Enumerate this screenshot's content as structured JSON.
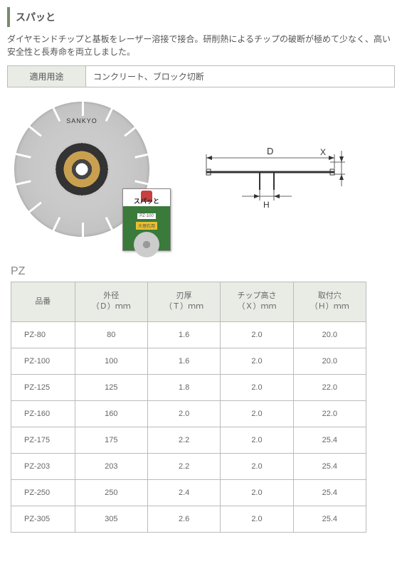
{
  "title": "スパッと",
  "description": "ダイヤモンドチップと基板をレーザー溶接で接合。研削熱によるチップの破断が極めて少なく、高い安全性と長寿命を両立しました。",
  "use_label": "適用用途",
  "use_value": "コンクリート、ブロック切断",
  "blade_brand": "SANKYO",
  "package": {
    "name": "スパッと",
    "code": "PZ-100",
    "tag": "大理石用"
  },
  "diagram_labels": {
    "D": "D",
    "X": "X",
    "H": "H"
  },
  "section": "PZ",
  "spec_headers": {
    "pn": "品番",
    "d": "外径\n（Ｄ）ｍｍ",
    "t": "刃厚\n（Ｔ）ｍｍ",
    "x": "チップ高さ\n（Ｘ）ｍｍ",
    "h": "取付穴\n（Ｈ）ｍｍ"
  },
  "spec_rows": [
    {
      "pn": "PZ-80",
      "d": "80",
      "t": "1.6",
      "x": "2.0",
      "h": "20.0"
    },
    {
      "pn": "PZ-100",
      "d": "100",
      "t": "1.6",
      "x": "2.0",
      "h": "20.0"
    },
    {
      "pn": "PZ-125",
      "d": "125",
      "t": "1.8",
      "x": "2.0",
      "h": "22.0"
    },
    {
      "pn": "PZ-160",
      "d": "160",
      "t": "2.0",
      "x": "2.0",
      "h": "22.0"
    },
    {
      "pn": "PZ-175",
      "d": "175",
      "t": "2.2",
      "x": "2.0",
      "h": "25.4"
    },
    {
      "pn": "PZ-203",
      "d": "203",
      "t": "2.2",
      "x": "2.0",
      "h": "25.4"
    },
    {
      "pn": "PZ-250",
      "d": "250",
      "t": "2.4",
      "x": "2.0",
      "h": "25.4"
    },
    {
      "pn": "PZ-305",
      "d": "305",
      "t": "2.6",
      "x": "2.0",
      "h": "25.4"
    }
  ],
  "colors": {
    "accent": "#7a8a6a",
    "table_head_bg": "#e8ece5",
    "border": "#bbbbbb",
    "text": "#555555"
  }
}
